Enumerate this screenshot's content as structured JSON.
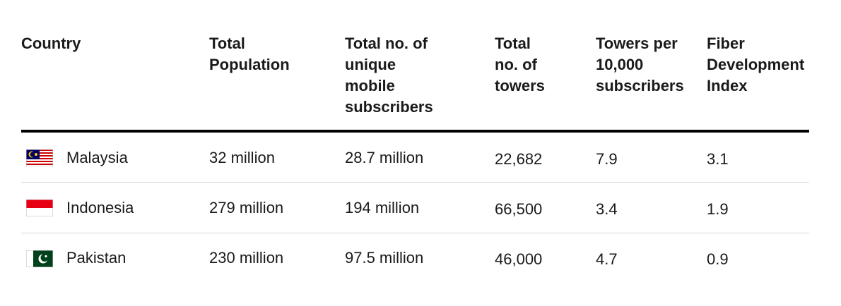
{
  "table": {
    "header": [
      "Country",
      "Total Population",
      "Total no. of unique mobile subscribers",
      "Total no. of towers",
      "Towers per 10,000 subscribers",
      "Fiber Development Index"
    ],
    "rows": [
      [
        "Malaysia",
        "32 million",
        "28.7 million",
        "22,682",
        "7.9",
        "3.1"
      ],
      [
        "Indonesia",
        "279 million",
        "194 million",
        "66,500",
        "3.4",
        "1.9"
      ],
      [
        "Pakistan",
        "230 million",
        "97.5 million",
        "46,000",
        "4.7",
        "0.9"
      ]
    ]
  }
}
